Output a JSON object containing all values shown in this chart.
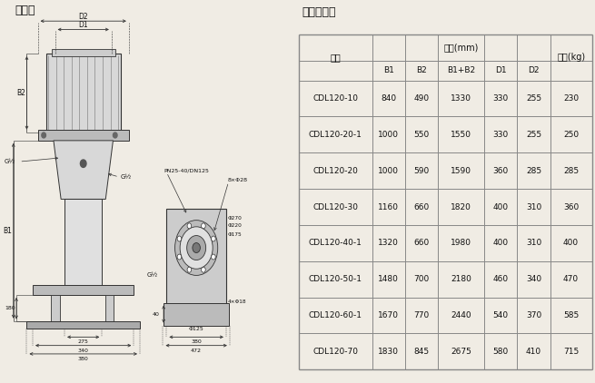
{
  "title_left": "安装图",
  "title_right": "尺寸和重量",
  "table_data": [
    [
      "CDL120-10",
      840,
      490,
      1330,
      330,
      255,
      230
    ],
    [
      "CDL120-20-1",
      1000,
      550,
      1550,
      330,
      255,
      250
    ],
    [
      "CDL120-20",
      1000,
      590,
      1590,
      360,
      285,
      285
    ],
    [
      "CDL120-30",
      1160,
      660,
      1820,
      400,
      310,
      360
    ],
    [
      "CDL120-40-1",
      1320,
      660,
      1980,
      400,
      310,
      400
    ],
    [
      "CDL120-50-1",
      1480,
      700,
      2180,
      460,
      340,
      470
    ],
    [
      "CDL120-60-1",
      1670,
      770,
      2440,
      540,
      370,
      585
    ],
    [
      "CDL120-70",
      1830,
      845,
      2675,
      580,
      410,
      715
    ]
  ],
  "bg_color": "#f0ece4",
  "grid_color": "#888888",
  "text_color": "#111111"
}
